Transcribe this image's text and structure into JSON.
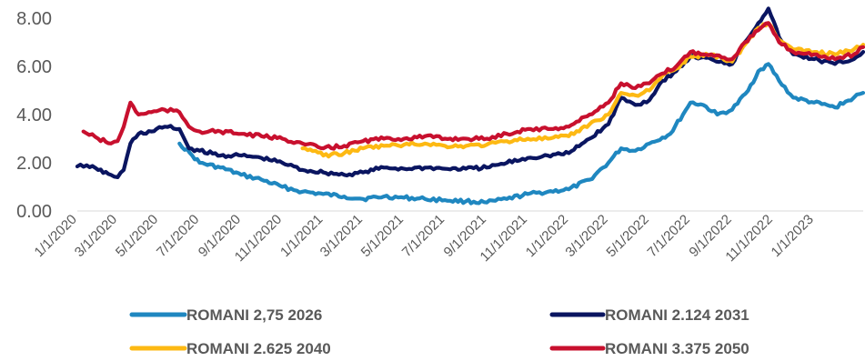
{
  "chart_data": {
    "type": "line",
    "xlabel": "",
    "ylabel": "",
    "ylim": [
      0,
      8
    ],
    "yticks": [
      "0.00",
      "2.00",
      "4.00",
      "6.00",
      "8.00"
    ],
    "xticks": [
      "1/1/2020",
      "3/1/2020",
      "5/1/2020",
      "7/1/2020",
      "9/1/2020",
      "11/1/2020",
      "1/1/2021",
      "3/1/2021",
      "5/1/2021",
      "7/1/2021",
      "9/1/2021",
      "11/1/2021",
      "1/1/2022",
      "3/1/2022",
      "5/1/2022",
      "7/1/2022",
      "9/1/2022",
      "11/1/2022",
      "1/1/2023"
    ],
    "x_range": [
      "2020-01-01",
      "2023-03-15"
    ],
    "grid": false,
    "legend_position": "bottom",
    "series": [
      {
        "name": "ROMANI 2,75 2026",
        "color": "#1f87c0",
        "points": [
          [
            "2020-06-01",
            2.8
          ],
          [
            "2020-06-20",
            2.3
          ],
          [
            "2020-07-01",
            2.0
          ],
          [
            "2020-08-01",
            1.8
          ],
          [
            "2020-09-01",
            1.5
          ],
          [
            "2020-10-01",
            1.3
          ],
          [
            "2020-11-01",
            1.0
          ],
          [
            "2020-12-01",
            0.8
          ],
          [
            "2021-01-01",
            0.7
          ],
          [
            "2021-02-01",
            0.6
          ],
          [
            "2021-03-01",
            0.5
          ],
          [
            "2021-04-01",
            0.6
          ],
          [
            "2021-05-01",
            0.55
          ],
          [
            "2021-06-01",
            0.5
          ],
          [
            "2021-07-01",
            0.45
          ],
          [
            "2021-08-01",
            0.4
          ],
          [
            "2021-09-01",
            0.35
          ],
          [
            "2021-10-01",
            0.5
          ],
          [
            "2021-11-01",
            0.7
          ],
          [
            "2021-12-01",
            0.8
          ],
          [
            "2022-01-01",
            0.9
          ],
          [
            "2022-02-01",
            1.3
          ],
          [
            "2022-03-01",
            2.0
          ],
          [
            "2022-03-20",
            2.6
          ],
          [
            "2022-04-10",
            2.5
          ],
          [
            "2022-05-01",
            2.8
          ],
          [
            "2022-06-01",
            3.2
          ],
          [
            "2022-06-20",
            4.0
          ],
          [
            "2022-07-01",
            4.5
          ],
          [
            "2022-07-20",
            4.4
          ],
          [
            "2022-08-10",
            4.0
          ],
          [
            "2022-09-01",
            4.2
          ],
          [
            "2022-09-25",
            5.0
          ],
          [
            "2022-10-10",
            5.8
          ],
          [
            "2022-10-25",
            6.1
          ],
          [
            "2022-11-10",
            5.4
          ],
          [
            "2022-12-01",
            4.7
          ],
          [
            "2023-01-01",
            4.5
          ],
          [
            "2023-02-01",
            4.3
          ],
          [
            "2023-03-01",
            4.7
          ],
          [
            "2023-03-15",
            4.9
          ]
        ]
      },
      {
        "name": "ROMANI 2.124 2031",
        "color": "#0a1560",
        "points": [
          [
            "2020-01-01",
            1.85
          ],
          [
            "2020-01-15",
            1.9
          ],
          [
            "2020-02-01",
            1.7
          ],
          [
            "2020-02-20",
            1.5
          ],
          [
            "2020-03-01",
            1.4
          ],
          [
            "2020-03-10",
            1.7
          ],
          [
            "2020-03-20",
            2.8
          ],
          [
            "2020-04-01",
            3.2
          ],
          [
            "2020-04-20",
            3.3
          ],
          [
            "2020-05-10",
            3.5
          ],
          [
            "2020-06-01",
            3.4
          ],
          [
            "2020-06-15",
            2.6
          ],
          [
            "2020-07-01",
            2.5
          ],
          [
            "2020-08-01",
            2.3
          ],
          [
            "2020-09-01",
            2.3
          ],
          [
            "2020-10-01",
            2.2
          ],
          [
            "2020-11-01",
            2.0
          ],
          [
            "2020-12-01",
            1.7
          ],
          [
            "2021-01-01",
            1.6
          ],
          [
            "2021-02-01",
            1.5
          ],
          [
            "2021-03-01",
            1.6
          ],
          [
            "2021-04-01",
            1.8
          ],
          [
            "2021-05-01",
            1.75
          ],
          [
            "2021-06-01",
            1.8
          ],
          [
            "2021-07-01",
            1.75
          ],
          [
            "2021-08-01",
            1.75
          ],
          [
            "2021-09-01",
            1.8
          ],
          [
            "2021-10-01",
            2.0
          ],
          [
            "2021-11-01",
            2.2
          ],
          [
            "2021-12-01",
            2.3
          ],
          [
            "2022-01-01",
            2.4
          ],
          [
            "2022-02-01",
            3.0
          ],
          [
            "2022-03-01",
            3.6
          ],
          [
            "2022-03-20",
            4.7
          ],
          [
            "2022-04-10",
            4.4
          ],
          [
            "2022-05-01",
            4.6
          ],
          [
            "2022-05-20",
            5.4
          ],
          [
            "2022-06-10",
            5.8
          ],
          [
            "2022-07-01",
            6.4
          ],
          [
            "2022-08-01",
            6.3
          ],
          [
            "2022-09-01",
            6.1
          ],
          [
            "2022-09-20",
            7.0
          ],
          [
            "2022-10-10",
            7.8
          ],
          [
            "2022-10-25",
            8.4
          ],
          [
            "2022-11-10",
            7.2
          ],
          [
            "2022-12-01",
            6.5
          ],
          [
            "2023-01-01",
            6.3
          ],
          [
            "2023-02-01",
            6.1
          ],
          [
            "2023-03-01",
            6.3
          ],
          [
            "2023-03-15",
            6.6
          ]
        ]
      },
      {
        "name": "ROMANI 2.625 2040",
        "color": "#fdb913",
        "points": [
          [
            "2020-12-01",
            2.6
          ],
          [
            "2020-12-20",
            2.5
          ],
          [
            "2021-01-01",
            2.3
          ],
          [
            "2021-02-01",
            2.4
          ],
          [
            "2021-03-01",
            2.6
          ],
          [
            "2021-04-01",
            2.7
          ],
          [
            "2021-05-01",
            2.75
          ],
          [
            "2021-06-01",
            2.8
          ],
          [
            "2021-07-01",
            2.7
          ],
          [
            "2021-08-01",
            2.7
          ],
          [
            "2021-09-01",
            2.75
          ],
          [
            "2021-10-01",
            2.9
          ],
          [
            "2021-11-01",
            3.0
          ],
          [
            "2021-12-01",
            3.0
          ],
          [
            "2022-01-01",
            3.1
          ],
          [
            "2022-02-01",
            3.6
          ],
          [
            "2022-03-01",
            4.0
          ],
          [
            "2022-03-20",
            4.9
          ],
          [
            "2022-04-10",
            4.8
          ],
          [
            "2022-05-01",
            5.0
          ],
          [
            "2022-05-20",
            5.6
          ],
          [
            "2022-06-10",
            5.9
          ],
          [
            "2022-07-01",
            6.4
          ],
          [
            "2022-08-01",
            6.5
          ],
          [
            "2022-09-01",
            6.2
          ],
          [
            "2022-09-20",
            6.9
          ],
          [
            "2022-10-10",
            7.6
          ],
          [
            "2022-10-25",
            7.8
          ],
          [
            "2022-11-10",
            7.1
          ],
          [
            "2022-12-01",
            6.7
          ],
          [
            "2023-01-01",
            6.6
          ],
          [
            "2023-02-01",
            6.5
          ],
          [
            "2023-03-01",
            6.7
          ],
          [
            "2023-03-15",
            6.9
          ]
        ]
      },
      {
        "name": "ROMANI 3.375 2050",
        "color": "#c8102e",
        "points": [
          [
            "2020-01-10",
            3.3
          ],
          [
            "2020-02-01",
            3.0
          ],
          [
            "2020-02-20",
            2.8
          ],
          [
            "2020-03-01",
            2.9
          ],
          [
            "2020-03-10",
            3.5
          ],
          [
            "2020-03-20",
            4.5
          ],
          [
            "2020-04-01",
            4.0
          ],
          [
            "2020-04-20",
            4.1
          ],
          [
            "2020-05-10",
            4.2
          ],
          [
            "2020-06-01",
            4.1
          ],
          [
            "2020-06-15",
            3.5
          ],
          [
            "2020-07-01",
            3.3
          ],
          [
            "2020-08-01",
            3.3
          ],
          [
            "2020-09-01",
            3.2
          ],
          [
            "2020-10-01",
            3.1
          ],
          [
            "2020-11-01",
            3.0
          ],
          [
            "2020-12-01",
            2.8
          ],
          [
            "2021-01-01",
            2.6
          ],
          [
            "2021-02-01",
            2.7
          ],
          [
            "2021-03-01",
            2.9
          ],
          [
            "2021-04-01",
            3.0
          ],
          [
            "2021-05-01",
            3.0
          ],
          [
            "2021-06-01",
            3.1
          ],
          [
            "2021-07-01",
            3.0
          ],
          [
            "2021-08-01",
            3.0
          ],
          [
            "2021-09-01",
            3.0
          ],
          [
            "2021-10-01",
            3.2
          ],
          [
            "2021-11-01",
            3.4
          ],
          [
            "2021-12-01",
            3.4
          ],
          [
            "2022-01-01",
            3.5
          ],
          [
            "2022-02-01",
            4.0
          ],
          [
            "2022-03-01",
            4.5
          ],
          [
            "2022-03-20",
            5.3
          ],
          [
            "2022-04-10",
            5.1
          ],
          [
            "2022-05-01",
            5.3
          ],
          [
            "2022-05-20",
            5.7
          ],
          [
            "2022-06-10",
            6.0
          ],
          [
            "2022-07-01",
            6.6
          ],
          [
            "2022-08-01",
            6.5
          ],
          [
            "2022-09-01",
            6.3
          ],
          [
            "2022-09-20",
            7.0
          ],
          [
            "2022-10-10",
            7.5
          ],
          [
            "2022-10-25",
            7.8
          ],
          [
            "2022-11-10",
            7.0
          ],
          [
            "2022-12-01",
            6.6
          ],
          [
            "2023-01-01",
            6.5
          ],
          [
            "2023-02-01",
            6.3
          ],
          [
            "2023-03-01",
            6.5
          ],
          [
            "2023-03-15",
            6.8
          ]
        ]
      }
    ]
  }
}
